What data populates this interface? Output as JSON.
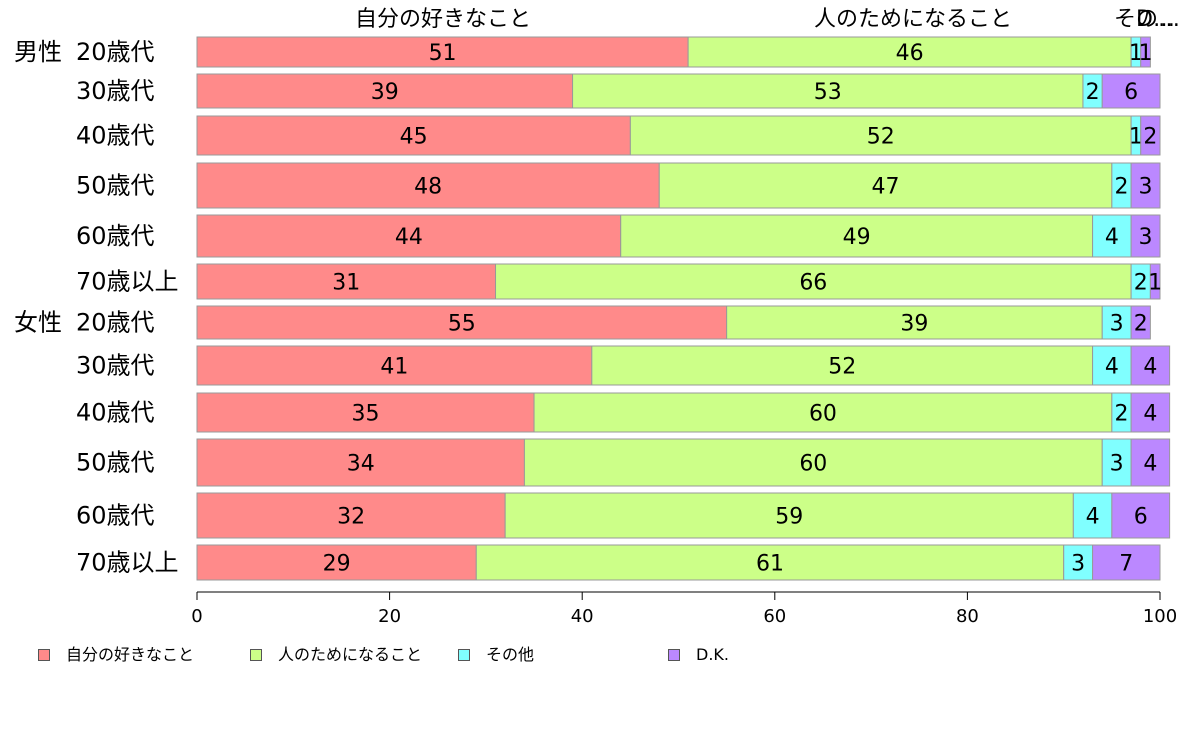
{
  "chart_data": {
    "type": "bar",
    "orientation": "horizontal",
    "stacked": true,
    "groups": [
      {
        "label": "男性",
        "rows": [
          "20歳代",
          "30歳代",
          "40歳代",
          "50歳代",
          "60歳代",
          "70歳以上"
        ]
      },
      {
        "label": "女性",
        "rows": [
          "20歳代",
          "30歳代",
          "40歳代",
          "50歳代",
          "60歳代",
          "70歳以上"
        ]
      }
    ],
    "categories": [
      "20歳代",
      "30歳代",
      "40歳代",
      "50歳代",
      "60歳代",
      "70歳以上",
      "20歳代",
      "30歳代",
      "40歳代",
      "50歳代",
      "60歳代",
      "70歳以上"
    ],
    "series": [
      {
        "name": "自分の好きなこと",
        "color": "#ff8a8a",
        "values": [
          51,
          39,
          45,
          48,
          44,
          31,
          55,
          41,
          35,
          34,
          32,
          29
        ]
      },
      {
        "name": "人のためになること",
        "color": "#ccff88",
        "values": [
          46,
          53,
          52,
          47,
          49,
          66,
          39,
          52,
          60,
          60,
          59,
          61
        ]
      },
      {
        "name": "その他",
        "color": "#80ffff",
        "values": [
          1,
          2,
          1,
          2,
          4,
          2,
          3,
          4,
          2,
          3,
          4,
          3
        ]
      },
      {
        "name": "D.K.",
        "color": "#bb88ff",
        "values": [
          1,
          6,
          2,
          3,
          3,
          1,
          2,
          4,
          4,
          4,
          6,
          7
        ]
      }
    ],
    "top_labels": [
      "自分の好きなこと",
      "人のためになること",
      "その…",
      "D…"
    ],
    "xlim": [
      0,
      100
    ],
    "xticks": [
      0,
      20,
      40,
      60,
      80,
      100
    ],
    "legend_position": "bottom-left",
    "grid": false
  }
}
